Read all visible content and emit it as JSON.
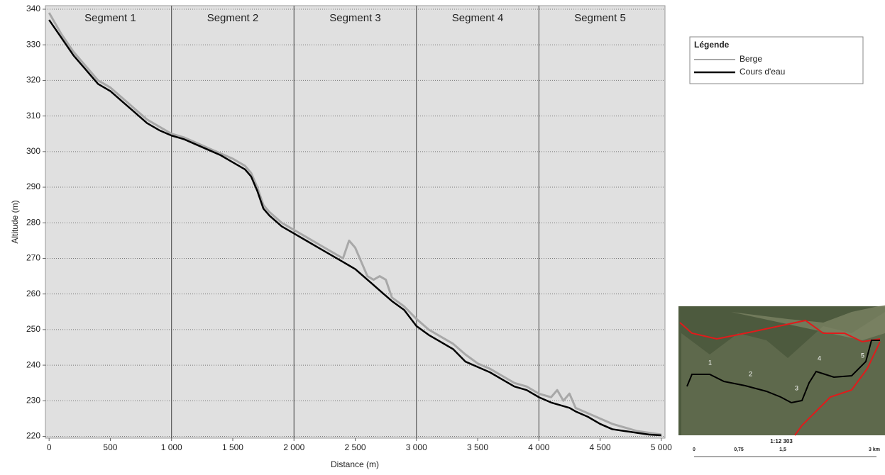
{
  "chart_data": {
    "type": "line",
    "xlabel": "Distance (m)",
    "ylabel": "Altitude (m)",
    "xlim": [
      -30,
      5030
    ],
    "ylim": [
      219.5,
      341
    ],
    "xticks": [
      0,
      500,
      {
        "value": 1000,
        "label": "1 000"
      },
      {
        "value": 1500,
        "label": "1 500"
      },
      {
        "value": 2000,
        "label": "2 000"
      },
      {
        "value": 2500,
        "label": "2 500"
      },
      {
        "value": 3000,
        "label": "3 000"
      },
      {
        "value": 3500,
        "label": "3 500"
      },
      {
        "value": 4000,
        "label": "4 000"
      },
      {
        "value": 4500,
        "label": "4 500"
      },
      {
        "value": 5000,
        "label": "5 000"
      }
    ],
    "yticks": [
      220,
      230,
      240,
      250,
      260,
      270,
      280,
      290,
      300,
      310,
      320,
      330,
      340
    ],
    "grid": true,
    "segments": [
      {
        "label": "Segment 1",
        "start": 0,
        "end": 1000
      },
      {
        "label": "Segment 2",
        "start": 1000,
        "end": 2000
      },
      {
        "label": "Segment 3",
        "start": 2000,
        "end": 3000
      },
      {
        "label": "Segment 4",
        "start": 3000,
        "end": 4000
      },
      {
        "label": "Segment 5",
        "start": 4000,
        "end": 5000
      }
    ],
    "legend_title": "Légende",
    "legend": "top-right",
    "x": [
      0,
      100,
      200,
      300,
      400,
      500,
      600,
      700,
      800,
      900,
      1000,
      1100,
      1200,
      1300,
      1400,
      1500,
      1600,
      1650,
      1700,
      1750,
      1800,
      1900,
      2000,
      2100,
      2200,
      2300,
      2400,
      2450,
      2500,
      2600,
      2650,
      2700,
      2750,
      2800,
      2900,
      3000,
      3100,
      3200,
      3300,
      3400,
      3500,
      3600,
      3700,
      3800,
      3900,
      4000,
      4100,
      4150,
      4200,
      4250,
      4300,
      4400,
      4500,
      4600,
      4700,
      4800,
      4900,
      5000
    ],
    "series": [
      {
        "name": "Berge",
        "color": "#a8a8a8",
        "values": [
          339,
          333,
          328,
          324,
          320,
          318,
          315,
          312,
          309,
          307,
          305,
          304,
          302.5,
          301,
          299.5,
          298,
          296,
          294,
          290,
          285,
          283,
          280,
          278,
          276,
          274,
          272,
          270,
          275,
          273,
          265,
          264,
          265,
          264,
          259,
          256.5,
          253,
          250,
          248,
          246,
          243,
          240.5,
          239,
          237,
          235,
          234,
          232,
          231,
          233,
          230,
          232,
          228,
          226.5,
          225,
          223.5,
          222.5,
          221.5,
          221,
          220.5
        ]
      },
      {
        "name": "Cours d'eau",
        "color": "#000000",
        "values": [
          337,
          332,
          327,
          323,
          319,
          317,
          314,
          311,
          308,
          306,
          304.5,
          303.5,
          302,
          300.5,
          299,
          297,
          295,
          293,
          289,
          284,
          282,
          279,
          277,
          275,
          273,
          271,
          269,
          268,
          267,
          264,
          262.5,
          261,
          259.5,
          258,
          255.5,
          251,
          248.5,
          246.5,
          244.5,
          241,
          239.5,
          238,
          236,
          234,
          233,
          231,
          229.5,
          229,
          228.5,
          228,
          227,
          225.5,
          223.5,
          222,
          221.5,
          221,
          220.5,
          220.3
        ]
      }
    ]
  },
  "inset": {
    "labels": [
      "1",
      "2",
      "3",
      "4",
      "5"
    ],
    "scale": "1:12 303",
    "scale_ticks": [
      "0",
      "0,75",
      "1,5",
      "3 km"
    ]
  }
}
